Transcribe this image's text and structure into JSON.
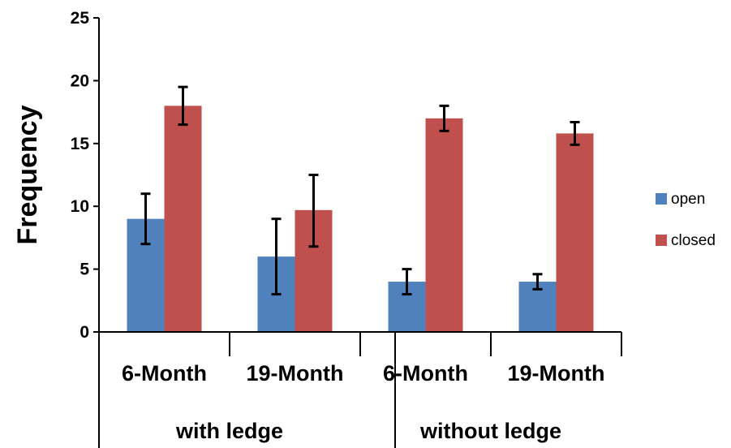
{
  "chart_data": {
    "type": "bar",
    "ylabel": "Frequency",
    "xlabel": "",
    "ylim": [
      0,
      25
    ],
    "yticks": [
      0,
      5,
      10,
      15,
      20,
      25
    ],
    "grid": false,
    "legend_position": "right",
    "categories": [
      "6-Month",
      "19-Month",
      "6-Month",
      "19-Month"
    ],
    "groups": [
      {
        "label": "with ledge",
        "categories": [
          0,
          1
        ]
      },
      {
        "label": "without ledge",
        "categories": [
          2,
          3
        ]
      }
    ],
    "series": [
      {
        "name": "open",
        "color": "#4f81bd",
        "values": [
          9,
          6,
          4,
          4
        ],
        "error_low": [
          7,
          3,
          3,
          3.4
        ],
        "error_high": [
          11,
          9,
          5,
          4.6
        ]
      },
      {
        "name": "closed",
        "color": "#c0504d",
        "values": [
          18,
          9.7,
          17,
          15.8
        ],
        "error_low": [
          16.5,
          6.8,
          16,
          14.9
        ],
        "error_high": [
          19.5,
          12.5,
          18,
          16.7
        ]
      }
    ]
  }
}
